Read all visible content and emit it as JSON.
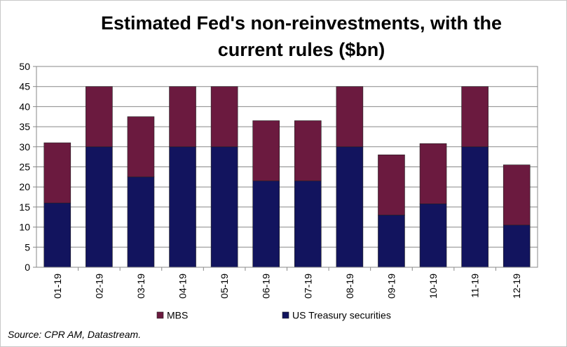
{
  "chart_data": {
    "type": "bar",
    "stacked": true,
    "title_line1": "Estimated Fed's non-reinvestments, with the",
    "title_line2": "current rules ($bn)",
    "categories": [
      "01-19",
      "02-19",
      "03-19",
      "04-19",
      "05-19",
      "06-19",
      "07-19",
      "08-19",
      "09-19",
      "10-19",
      "11-19",
      "12-19"
    ],
    "series": [
      {
        "name": "US Treasury securities",
        "color": "#12145E",
        "values": [
          16,
          30,
          22.5,
          30,
          30,
          21.5,
          21.5,
          30,
          13,
          15.8,
          30,
          10.5
        ]
      },
      {
        "name": "MBS",
        "color": "#6B1A3F",
        "values": [
          15,
          15,
          15,
          15,
          15,
          15,
          15,
          15,
          15,
          15,
          15,
          15
        ]
      }
    ],
    "legend_order": [
      "MBS",
      "US Treasury securities"
    ],
    "ylim": [
      0,
      50
    ],
    "yticks": [
      0,
      5,
      10,
      15,
      20,
      25,
      30,
      35,
      40,
      45,
      50
    ],
    "grid": true,
    "legend_position": "bottom",
    "source": "Source: CPR AM, Datastream."
  }
}
